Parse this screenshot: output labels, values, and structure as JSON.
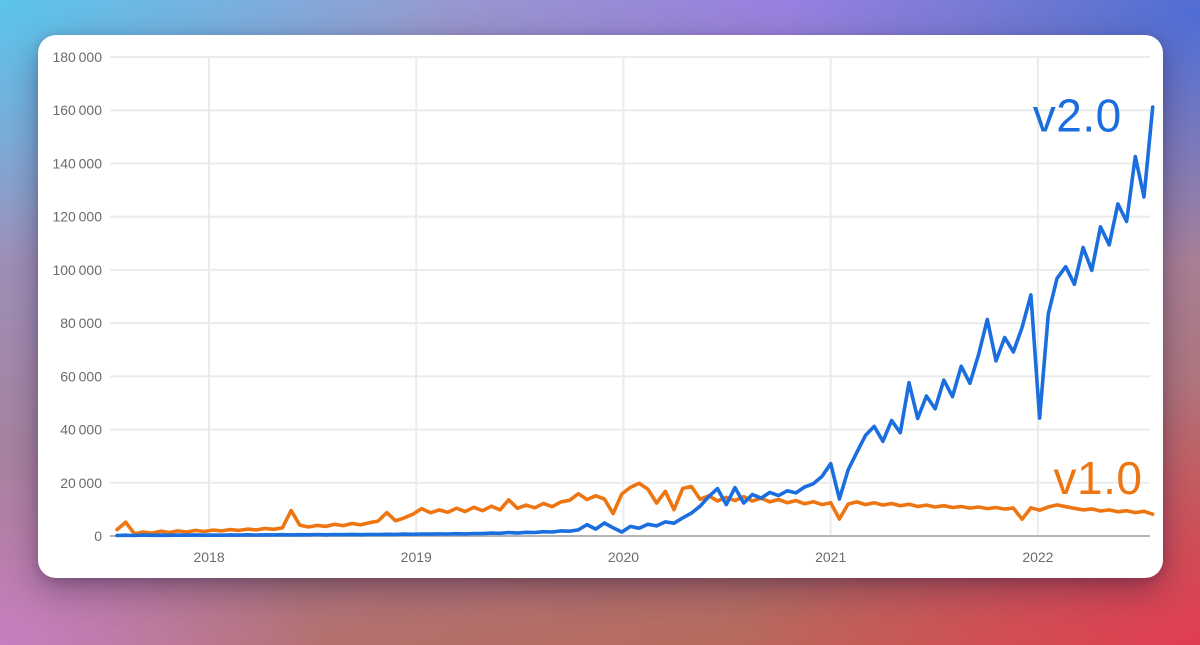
{
  "card": {
    "background": "#ffffff"
  },
  "chart_data": {
    "type": "line",
    "title": "",
    "xlabel": "",
    "ylabel": "",
    "grid": true,
    "x_axis": {
      "ticks": [
        2018,
        2019,
        2020,
        2021,
        2022
      ],
      "range": [
        2017.522,
        2022.541
      ]
    },
    "y_axis": {
      "ticks": [
        0,
        20000,
        40000,
        60000,
        80000,
        100000,
        120000,
        140000,
        160000,
        180000
      ],
      "range": [
        0,
        180000
      ],
      "tick_format": "thousands separated by thin space"
    },
    "colors": {
      "grid": "#ebebeb",
      "axis": "#b5b5b5",
      "tick_text": "#6b6b6b"
    },
    "series": [
      {
        "name": "v1.0",
        "color": "#ee7612",
        "x_start": 2017.556,
        "x_step": 0.042,
        "values": [
          2400,
          5200,
          800,
          1500,
          1100,
          1800,
          1300,
          1900,
          1500,
          2100,
          1700,
          2200,
          1900,
          2400,
          2100,
          2600,
          2300,
          2800,
          2500,
          3100,
          9600,
          4100,
          3400,
          4000,
          3600,
          4400,
          3900,
          4700,
          4200,
          5000,
          5600,
          8800,
          5700,
          6800,
          8200,
          10300,
          8700,
          9800,
          8900,
          10400,
          9200,
          10800,
          9500,
          11200,
          9800,
          13600,
          10400,
          11600,
          10600,
          12200,
          11000,
          12800,
          13400,
          15900,
          13700,
          15100,
          13900,
          8400,
          15800,
          18300,
          19800,
          17600,
          12400,
          16800,
          9900,
          17900,
          18600,
          13800,
          15100,
          13200,
          14500,
          13300,
          14800,
          13100,
          14200,
          12800,
          13700,
          12500,
          13300,
          12100,
          12900,
          11800,
          12500,
          6400,
          12000,
          12800,
          11800,
          12500,
          11600,
          12200,
          11400,
          11900,
          11100,
          11600,
          10900,
          11400,
          10700,
          11100,
          10500,
          10900,
          10300,
          10700,
          10100,
          10500,
          6300,
          10600,
          9700,
          10900,
          11700,
          11000,
          10400,
          9800,
          10200,
          9400,
          9800,
          9100,
          9500,
          8800,
          9300,
          8200
        ]
      },
      {
        "name": "v2.0",
        "color": "#1b6ede",
        "x_start": 2017.556,
        "x_step": 0.042,
        "values": [
          200,
          300,
          200,
          350,
          250,
          300,
          250,
          350,
          300,
          400,
          300,
          350,
          300,
          400,
          350,
          450,
          350,
          450,
          400,
          500,
          400,
          500,
          450,
          550,
          450,
          550,
          500,
          600,
          500,
          600,
          550,
          650,
          600,
          700,
          650,
          750,
          700,
          800,
          750,
          850,
          800,
          950,
          900,
          1100,
          1000,
          1300,
          1100,
          1400,
          1300,
          1600,
          1500,
          1900,
          1800,
          2300,
          4300,
          2600,
          4900,
          3100,
          1500,
          3600,
          2900,
          4400,
          3800,
          5300,
          4800,
          6800,
          8600,
          11200,
          14800,
          17800,
          11800,
          18200,
          12400,
          15600,
          14200,
          16400,
          15200,
          17000,
          16200,
          18400,
          19600,
          22400,
          27200,
          13900,
          24800,
          31400,
          37800,
          41200,
          35600,
          43400,
          38800,
          57600,
          44200,
          52600,
          47800,
          58600,
          52400,
          63800,
          57400,
          68200,
          81400,
          65800,
          74600,
          69200,
          78400,
          90600,
          44300,
          83400,
          96800,
          101200,
          94600,
          108400,
          99800,
          116200,
          109400,
          124800,
          118200,
          142600,
          127400,
          161200
        ]
      }
    ],
    "annotations": [
      {
        "text": "v2.0",
        "x": 2022.19,
        "y": 158000,
        "color": "#1b6ede"
      },
      {
        "text": "v1.0",
        "x": 2022.29,
        "y": 21800,
        "color": "#ee7612"
      }
    ]
  }
}
